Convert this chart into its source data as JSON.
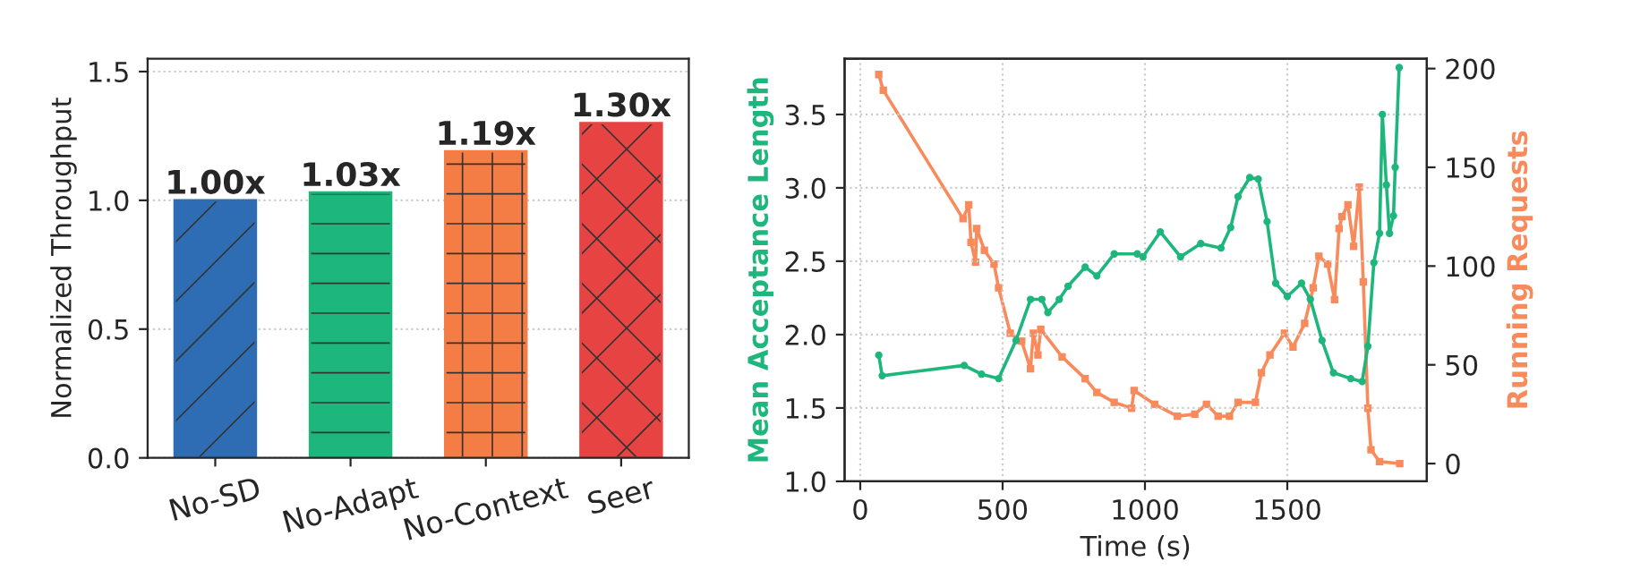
{
  "chart_data": [
    {
      "type": "bar",
      "ylabel": "Normalized Throughput",
      "categories": [
        "No-SD",
        "No-Adapt",
        "No-Context",
        "Seer"
      ],
      "values": [
        1.0,
        1.03,
        1.19,
        1.3
      ],
      "colors": [
        "#2e6db4",
        "#1db67c",
        "#f47c45",
        "#e84343"
      ],
      "value_labels": [
        "1.00x",
        "1.03x",
        "1.19x",
        "1.30x"
      ],
      "ylim": [
        0,
        1.55
      ],
      "yticks": [
        {
          "value": 0,
          "label": "0.0"
        },
        0.5,
        {
          "value": 1,
          "label": "1.0"
        },
        1.5
      ],
      "grid": "y",
      "legend": false
    },
    {
      "type": "line",
      "xlabel": "Time (s)",
      "ylabel": "Mean Acceptance Length",
      "y2label": "Running Requests",
      "xlim": [
        -55,
        1990
      ],
      "xticks": [
        0,
        500,
        1000,
        1500
      ],
      "ylim": [
        1.0,
        3.88
      ],
      "yticks": [
        {
          "value": 1,
          "label": "1.0"
        },
        1.5,
        {
          "value": 2,
          "label": "2.0"
        },
        2.5,
        {
          "value": 3,
          "label": "3.0"
        },
        3.5
      ],
      "y2lim": [
        -9,
        205
      ],
      "y2ticks": [
        0,
        50,
        100,
        150,
        200
      ],
      "grid": true,
      "legend": false,
      "series": [
        {
          "color": "#1db67c",
          "marker": "circle",
          "line_style": "solid",
          "x": [
            65,
            77,
            365,
            426,
            486,
            547,
            598,
            638,
            659,
            699,
            730,
            790,
            831,
            892,
            973,
            993,
            1054,
            1125,
            1196,
            1267,
            1301,
            1327,
            1368,
            1398,
            1429,
            1459,
            1500,
            1550,
            1581,
            1622,
            1662,
            1723,
            1763,
            1783,
            1804,
            1824,
            1834,
            1848,
            1859,
            1873,
            1879,
            1893
          ],
          "values": [
            1.86,
            1.72,
            1.79,
            1.73,
            1.7,
            1.96,
            2.24,
            2.24,
            2.15,
            2.24,
            2.33,
            2.46,
            2.4,
            2.55,
            2.55,
            2.53,
            2.7,
            2.53,
            2.62,
            2.59,
            2.73,
            2.94,
            3.07,
            3.06,
            2.77,
            2.35,
            2.26,
            2.35,
            2.24,
            1.96,
            1.74,
            1.7,
            1.68,
            1.92,
            2.49,
            2.69,
            3.5,
            3.02,
            2.69,
            2.81,
            3.14,
            3.82
          ]
        },
        {
          "color": "#f98a5c",
          "marker": "square",
          "line_style": "solid",
          "axis": "y2",
          "x": [
            65,
            81,
            361,
            381,
            389,
            405,
            409,
            436,
            470,
            486,
            527,
            567,
            598,
            608,
            624,
            634,
            709,
            790,
            831,
            892,
            953,
            962,
            1034,
            1114,
            1175,
            1216,
            1257,
            1297,
            1327,
            1388,
            1409,
            1439,
            1490,
            1520,
            1561,
            1591,
            1611,
            1642,
            1666,
            1682,
            1692,
            1713,
            1733,
            1753,
            1767,
            1783,
            1794,
            1824,
            1895
          ],
          "values": [
            197,
            189,
            124,
            131,
            112,
            102,
            119,
            108,
            101,
            89,
            66,
            62,
            48,
            66,
            55,
            68,
            54,
            43,
            36,
            31,
            28,
            37,
            30,
            24,
            25,
            30,
            24,
            24,
            31,
            31,
            46,
            55,
            66,
            59,
            71,
            89,
            105,
            101,
            83,
            119,
            125,
            131,
            110,
            140,
            92,
            28,
            7,
            1,
            0
          ]
        }
      ]
    }
  ]
}
